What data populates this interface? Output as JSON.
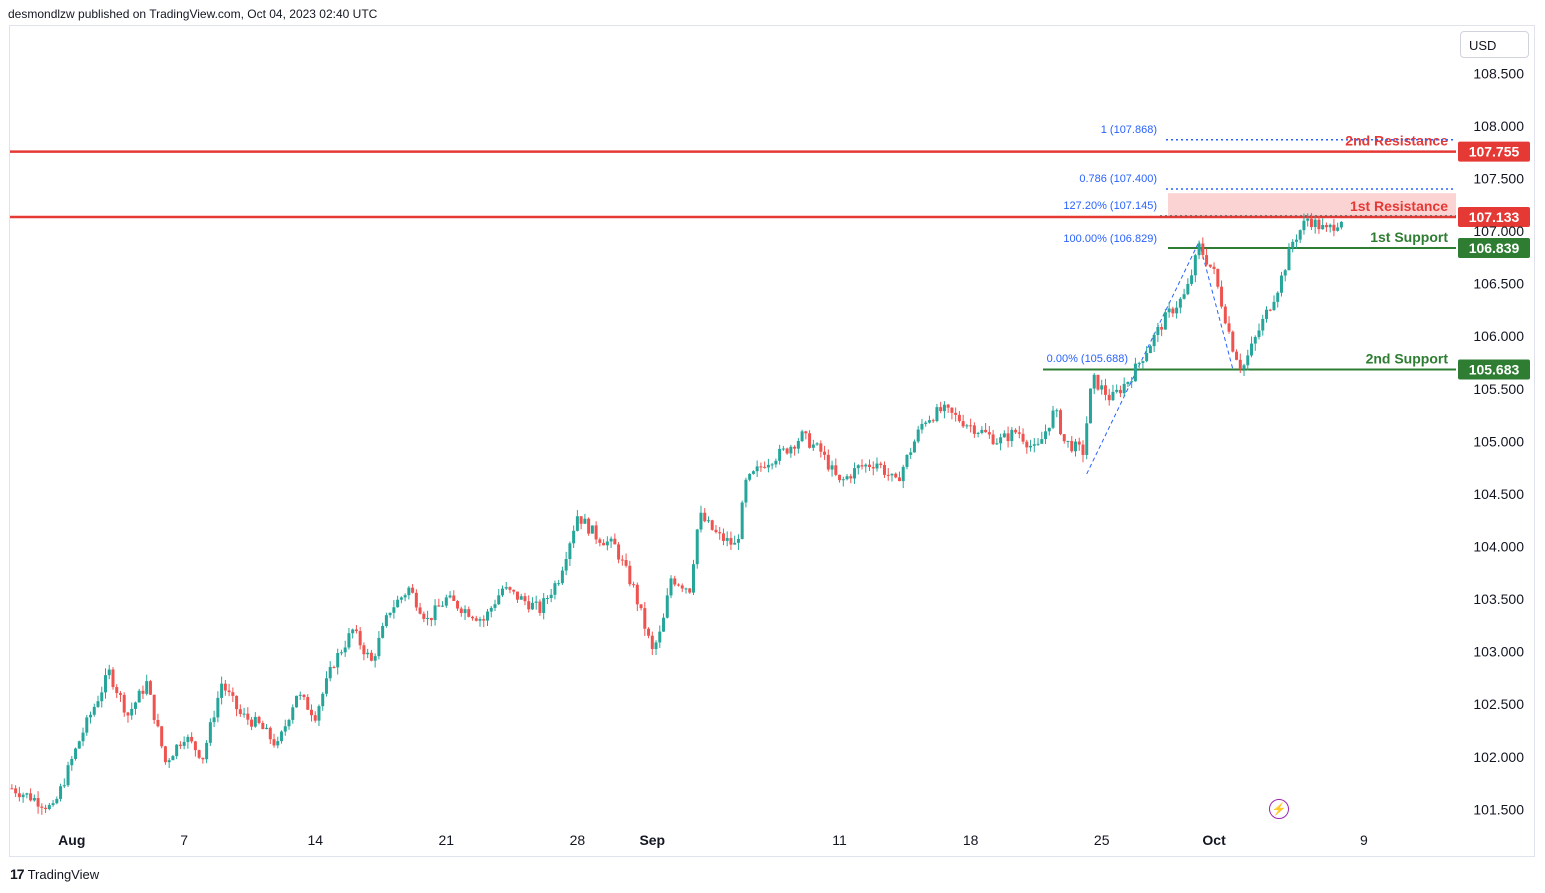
{
  "header": {
    "publisher_text": "desmondlzw published on TradingView.com, Oct 04, 2023 02:40 UTC"
  },
  "currency_button": {
    "label": "USD"
  },
  "footer": {
    "brand": "TradingView",
    "logo_glyph": "17"
  },
  "colors": {
    "up": "#26a69a",
    "down": "#ef5350",
    "resistance": "#e53935",
    "support": "#2e7d32",
    "fib": "#2962ff",
    "zone": "#fbd3d3",
    "alert": "#9c27b0"
  },
  "chart_data": {
    "type": "candlestick",
    "ylim": [
      101.37,
      108.95
    ],
    "y_ticks": [
      "101.500",
      "102.000",
      "102.500",
      "103.000",
      "103.500",
      "104.000",
      "104.500",
      "105.000",
      "105.500",
      "106.000",
      "106.500",
      "107.000",
      "107.500",
      "108.000",
      "108.500"
    ],
    "y_tick_values": [
      101.5,
      102.0,
      102.5,
      103.0,
      103.5,
      104.0,
      104.5,
      105.0,
      105.5,
      106.0,
      106.5,
      107.0,
      107.5,
      108.0,
      108.5
    ],
    "x_range_days": [
      -3.3,
      68.9
    ],
    "x_ticks": [
      {
        "label": "Aug",
        "day": 0
      },
      {
        "label": "7",
        "day": 6
      },
      {
        "label": "14",
        "day": 13
      },
      {
        "label": "21",
        "day": 20
      },
      {
        "label": "28",
        "day": 27
      },
      {
        "label": "Sep",
        "day": 31
      },
      {
        "label": "11",
        "day": 41
      },
      {
        "label": "18",
        "day": 48
      },
      {
        "label": "25",
        "day": 55
      },
      {
        "label": "Oct",
        "day": 61
      },
      {
        "label": "9",
        "day": 69
      }
    ],
    "levels": [
      {
        "name": "2nd Resistance",
        "value": 107.755,
        "tag": "107.755",
        "kind": "resistance"
      },
      {
        "name": "1st Resistance",
        "value": 107.133,
        "tag": "107.133",
        "kind": "resistance"
      },
      {
        "name": "1st Support",
        "value": 106.839,
        "tag": "106.839",
        "kind": "support"
      },
      {
        "name": "2nd Support",
        "value": 105.683,
        "tag": "105.683",
        "kind": "support"
      }
    ],
    "resistance_zone": [
      107.133,
      107.36
    ],
    "fib_labels": [
      {
        "text": "1 (107.868)",
        "value": 107.868
      },
      {
        "text": "0.786 (107.400)",
        "value": 107.4
      },
      {
        "text": "127.20% (107.145)",
        "value": 107.145
      },
      {
        "text": "100.00% (106.829)",
        "value": 106.829
      },
      {
        "text": "0.00% (105.688)",
        "value": 105.688
      }
    ],
    "fib_path_points": [
      [
        54.2,
        104.69
      ],
      [
        60.2,
        106.9
      ],
      [
        62.0,
        105.688
      ]
    ],
    "ohlc_summary": {
      "first_close": 101.7,
      "last_close": 107.12,
      "period_high": 107.36,
      "period_low": 101.42
    },
    "path_waypoints": [
      [
        -3.2,
        101.7
      ],
      [
        -2.0,
        101.6
      ],
      [
        -1.0,
        101.5
      ],
      [
        0.5,
        102.2
      ],
      [
        2.0,
        102.8
      ],
      [
        3.0,
        102.4
      ],
      [
        4.0,
        102.7
      ],
      [
        5.0,
        101.95
      ],
      [
        6.0,
        102.2
      ],
      [
        7.0,
        102.0
      ],
      [
        8.0,
        102.7
      ],
      [
        9.0,
        102.4
      ],
      [
        10.0,
        102.3
      ],
      [
        11.0,
        102.1
      ],
      [
        12.0,
        102.6
      ],
      [
        13.0,
        102.4
      ],
      [
        14.0,
        102.9
      ],
      [
        15.0,
        103.2
      ],
      [
        16.0,
        102.9
      ],
      [
        17.0,
        103.4
      ],
      [
        18.0,
        103.6
      ],
      [
        19.0,
        103.3
      ],
      [
        20.0,
        103.5
      ],
      [
        21.0,
        103.4
      ],
      [
        22.0,
        103.3
      ],
      [
        23.0,
        103.6
      ],
      [
        24.0,
        103.5
      ],
      [
        25.0,
        103.4
      ],
      [
        26.0,
        103.7
      ],
      [
        27.0,
        104.3
      ],
      [
        28.0,
        104.1
      ],
      [
        29.0,
        104.0
      ],
      [
        30.0,
        103.6
      ],
      [
        31.0,
        103.0
      ],
      [
        31.5,
        103.2
      ],
      [
        32.0,
        103.7
      ],
      [
        33.0,
        103.6
      ],
      [
        33.5,
        104.3
      ],
      [
        34.5,
        104.1
      ],
      [
        35.5,
        104.0
      ],
      [
        36.0,
        104.6
      ],
      [
        37.0,
        104.8
      ],
      [
        38.0,
        104.9
      ],
      [
        39.0,
        105.05
      ],
      [
        40.0,
        104.9
      ],
      [
        41.0,
        104.6
      ],
      [
        42.0,
        104.75
      ],
      [
        43.0,
        104.8
      ],
      [
        44.0,
        104.6
      ],
      [
        45.5,
        105.2
      ],
      [
        46.5,
        105.3
      ],
      [
        47.5,
        105.2
      ],
      [
        48.5,
        105.1
      ],
      [
        49.5,
        105.0
      ],
      [
        50.5,
        105.1
      ],
      [
        51.5,
        104.9
      ],
      [
        52.5,
        105.3
      ],
      [
        53.0,
        105.0
      ],
      [
        54.0,
        104.9
      ],
      [
        54.5,
        105.6
      ],
      [
        55.5,
        105.4
      ],
      [
        56.5,
        105.6
      ],
      [
        57.5,
        105.9
      ],
      [
        58.5,
        106.2
      ],
      [
        59.5,
        106.4
      ],
      [
        60.2,
        106.85
      ],
      [
        61.0,
        106.6
      ],
      [
        62.0,
        105.9
      ],
      [
        62.5,
        105.68
      ],
      [
        63.5,
        106.1
      ],
      [
        64.5,
        106.5
      ],
      [
        65.2,
        106.9
      ],
      [
        66.0,
        107.12
      ],
      [
        67.0,
        107.0
      ],
      [
        67.8,
        107.12
      ]
    ]
  }
}
